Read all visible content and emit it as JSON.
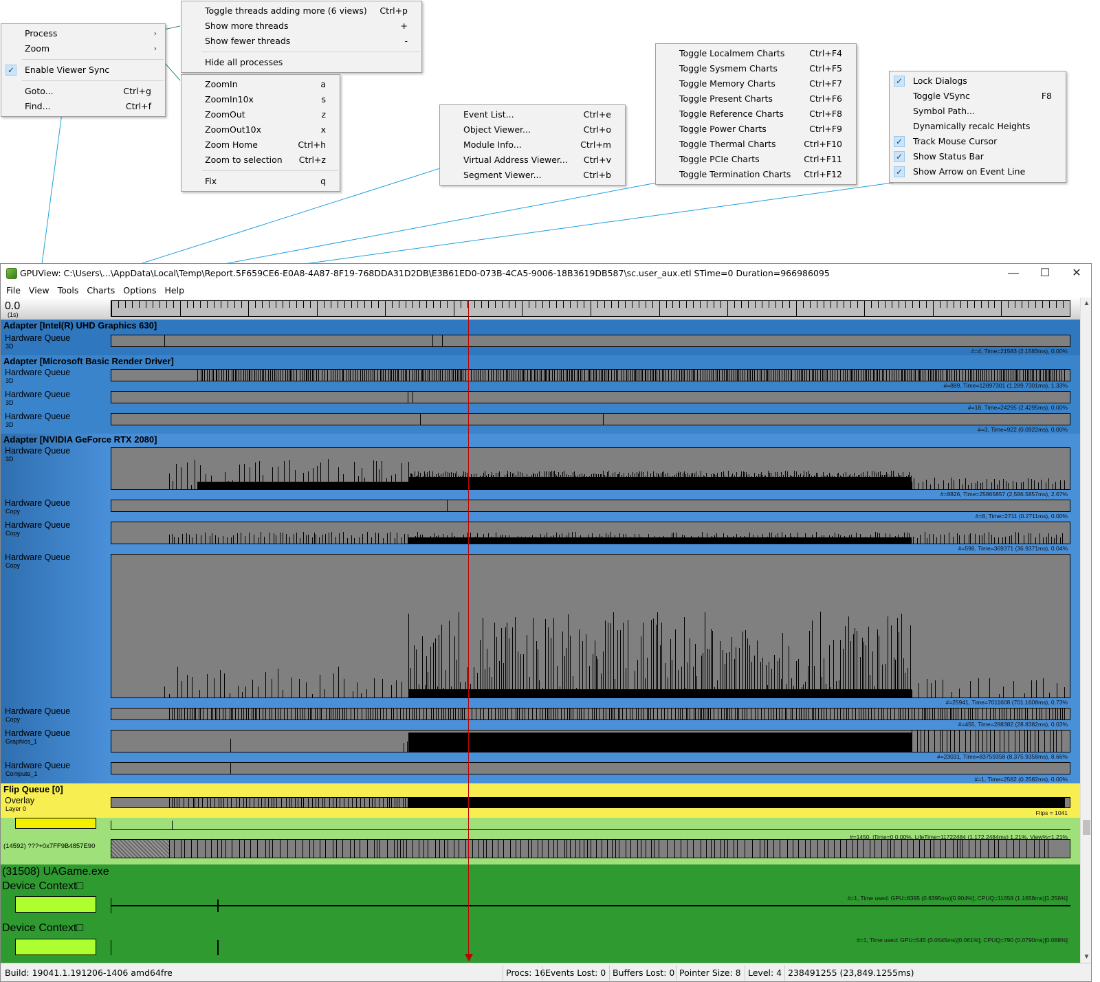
{
  "menus": {
    "view_main": {
      "items": [
        {
          "label": "Process",
          "submenu": true
        },
        {
          "label": "Zoom",
          "submenu": true
        },
        {
          "label": "Enable Viewer Sync",
          "checked": true
        },
        {
          "label": "Goto...",
          "shortcut": "Ctrl+g"
        },
        {
          "label": "Find...",
          "shortcut": "Ctrl+f"
        }
      ]
    },
    "process": {
      "items": [
        {
          "label": "Toggle threads adding more (6 views)",
          "shortcut": "Ctrl+p"
        },
        {
          "label": "Show more threads",
          "shortcut": "+"
        },
        {
          "label": "Show fewer threads",
          "shortcut": "-"
        },
        {
          "label": "Hide all processes",
          "shortcut": ""
        }
      ]
    },
    "zoom": {
      "items": [
        {
          "label": "ZoomIn",
          "shortcut": "a"
        },
        {
          "label": "ZoomIn10x",
          "shortcut": "s"
        },
        {
          "label": "ZoomOut",
          "shortcut": "z"
        },
        {
          "label": "ZoomOut10x",
          "shortcut": "x"
        },
        {
          "label": "Zoom Home",
          "shortcut": "Ctrl+h"
        },
        {
          "label": "Zoom to selection",
          "shortcut": "Ctrl+z"
        },
        {
          "label": "Fix",
          "shortcut": "q"
        }
      ]
    },
    "tools": {
      "items": [
        {
          "label": "Event List...",
          "shortcut": "Ctrl+e"
        },
        {
          "label": "Object Viewer...",
          "shortcut": "Ctrl+o"
        },
        {
          "label": "Module Info...",
          "shortcut": "Ctrl+m"
        },
        {
          "label": "Virtual Address Viewer...",
          "shortcut": "Ctrl+v"
        },
        {
          "label": "Segment Viewer...",
          "shortcut": "Ctrl+b"
        }
      ]
    },
    "charts": {
      "items": [
        {
          "label": "Toggle Localmem Charts",
          "shortcut": "Ctrl+F4"
        },
        {
          "label": "Toggle Sysmem Charts",
          "shortcut": "Ctrl+F5"
        },
        {
          "label": "Toggle Memory Charts",
          "shortcut": "Ctrl+F7"
        },
        {
          "label": "Toggle Present Charts",
          "shortcut": "Ctrl+F6"
        },
        {
          "label": "Toggle Reference Charts",
          "shortcut": "Ctrl+F8"
        },
        {
          "label": "Toggle Power Charts",
          "shortcut": "Ctrl+F9"
        },
        {
          "label": "Toggle Thermal Charts",
          "shortcut": "Ctrl+F10"
        },
        {
          "label": "Toggle PCIe Charts",
          "shortcut": "Ctrl+F11"
        },
        {
          "label": "Toggle Termination Charts",
          "shortcut": "Ctrl+F12"
        }
      ]
    },
    "options": {
      "items": [
        {
          "label": "Lock Dialogs",
          "shortcut": "",
          "checked": true
        },
        {
          "label": "Toggle VSync",
          "shortcut": "F8",
          "checked": false
        },
        {
          "label": "Symbol Path...",
          "shortcut": "",
          "checked": false
        },
        {
          "label": "Dynamically recalc Heights",
          "shortcut": "",
          "checked": false
        },
        {
          "label": "Track Mouse Cursor",
          "shortcut": "",
          "checked": true
        },
        {
          "label": "Show Status Bar",
          "shortcut": "",
          "checked": true
        },
        {
          "label": "Show Arrow on Event Line",
          "shortcut": "",
          "checked": true
        }
      ]
    }
  },
  "window": {
    "title": "GPUView: C:\\Users\\...\\AppData\\Local\\Temp\\Report.5F659CE6-E0A8-4A87-8F19-768DDA31D2DB\\E3B61ED0-073B-4CA5-9006-18B3619DB587\\sc.user_aux.etl STime=0 Duration=966986095",
    "minimize": "—",
    "maximize": "☐",
    "close": "✕",
    "menubar": [
      "File",
      "View",
      "Tools",
      "Charts",
      "Options",
      "Help"
    ]
  },
  "ruler": {
    "time": "0.0",
    "unit": "(1s)"
  },
  "adapters": [
    {
      "title": "Adapter [Intel(R) UHD Graphics 630]",
      "color": "#2f78c0",
      "queues": [
        {
          "name": "Hardware Queue",
          "type": "3D",
          "stats": "#=4,  Time=21583 (2.1583ms),  0.00%"
        }
      ]
    },
    {
      "title": "Adapter [Microsoft Basic Render Driver]",
      "color": "#3a84cc",
      "queues": [
        {
          "name": "Hardware Queue",
          "type": "3D",
          "stats": "#=889,  Time=12897301 (1,289.7301ms),  1.33%"
        },
        {
          "name": "Hardware Queue",
          "type": "3D",
          "stats": "#=18,  Time=24295 (2.4295ms),  0.00%"
        },
        {
          "name": "Hardware Queue",
          "type": "3D",
          "stats": "#=3,  Time=922 (0.0922ms),  0.00%"
        }
      ]
    },
    {
      "title": "Adapter [NVIDIA GeForce RTX 2080]",
      "color": "#4a90d9",
      "queues": [
        {
          "name": "Hardware Queue",
          "type": "3D",
          "stats": "#=8826,  Time=25865857 (2,586.5857ms),  2.67%"
        },
        {
          "name": "Hardware Queue",
          "type": "Copy",
          "stats": "#=8,  Time=2711 (0.2711ms),  0.00%"
        },
        {
          "name": "Hardware Queue",
          "type": "Copy",
          "stats": "#=596,  Time=369371 (36.9371ms),  0.04%"
        },
        {
          "name": "Hardware Queue",
          "type": "Copy",
          "stats": "#=25941,  Time=7011608 (701.1608ms),  0.73%"
        },
        {
          "name": "Hardware Queue",
          "type": "Copy",
          "stats": "#=455,  Time=288382 (28.8382ms),  0.03%"
        },
        {
          "name": "Hardware Queue",
          "type": "Graphics_1",
          "stats": "#=23031,  Time=83759358 (8,375.9358ms),  8.66%"
        },
        {
          "name": "Hardware Queue",
          "type": "Compute_1",
          "stats": "#=1,  Time=2582 (0.2582ms),  0.00%"
        }
      ]
    }
  ],
  "flip_queue": {
    "title": "Flip Queue [0]",
    "name": "Overlay",
    "sub": "Layer 0",
    "stats": "Flips = 1041",
    "color": "#f7ef52"
  },
  "thread_row": {
    "stats": "#=1450,  iTime=0  0.00%,  LifeTime=11722484 (1,172.2484ms)  1.21%,  View%=1.21%",
    "label": "(14592) ???+0x7FF9B4857E90"
  },
  "process": {
    "title": "(31508) UAGame.exe",
    "color": "#2e9a30",
    "contexts": [
      {
        "label": "Device Context□",
        "stats": "#=1, Time used: GPU=8395 (0.8395ms)[0.904%]; CPUQ=11658 (1.1658ms)[1.256%]"
      },
      {
        "label": "Device Context□",
        "stats": "#=1, Time used: GPU=545 (0.0545ms)[0.061%]; CPUQ=790 (0.0790ms)[0.088%]"
      }
    ]
  },
  "statusbar": {
    "build": "Build: 19041.1.191206-1406  amd64fre",
    "procs": "Procs: 16",
    "events_lost": "Events Lost: 0",
    "buffers_lost": "Buffers Lost: 0",
    "pointer_size": "Pointer Size: 8",
    "level": "Level: 4",
    "cursor_time": "238491255 (23,849.1255ms)"
  },
  "colors": {
    "cursor_line": "#c00000",
    "connector": "#1aa0e0",
    "track_bg": "#808080",
    "event": "#000000",
    "check_bg": "#cce4f7"
  }
}
